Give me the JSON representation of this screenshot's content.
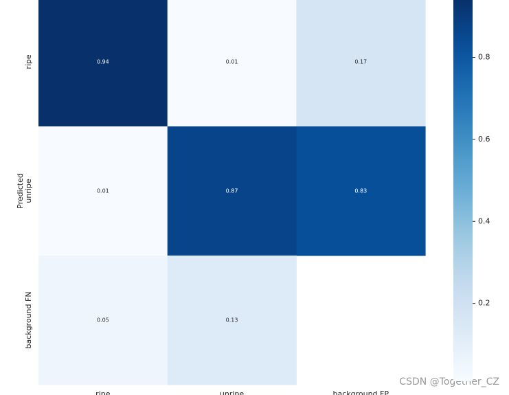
{
  "chart_data": {
    "type": "heatmap",
    "y_label": "Predicted",
    "rows": [
      "ripe",
      "unripe",
      "background FN"
    ],
    "columns": [
      "ripe",
      "unripe",
      "background FP"
    ],
    "values": [
      [
        0.94,
        0.01,
        0.17
      ],
      [
        0.01,
        0.87,
        0.83
      ],
      [
        0.05,
        0.13,
        null
      ]
    ],
    "cmap": "Blues",
    "clim": [
      0.01,
      0.94
    ],
    "colorbar_ticks": [
      0.2,
      0.4,
      0.6,
      0.8
    ]
  },
  "watermark": "CSDN @Together_CZ"
}
